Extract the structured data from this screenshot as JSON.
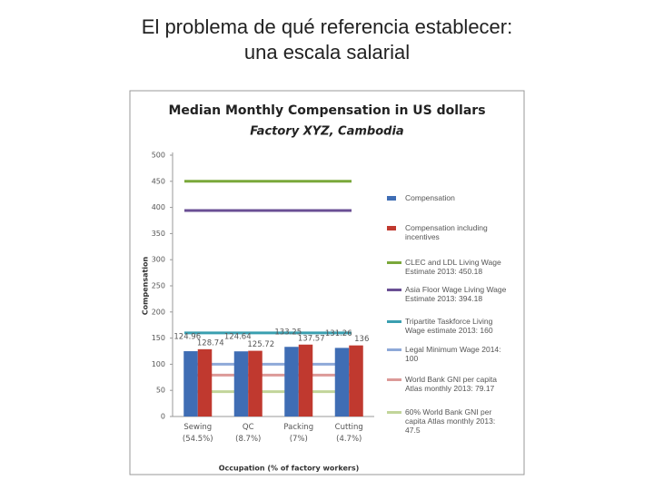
{
  "slide_title_line1": "El problema de qué referencia establecer:",
  "slide_title_line2": "una escala salarial",
  "chart_data": {
    "type": "bar",
    "title": "Median Monthly Compensation in US dollars",
    "subtitle": "Factory XYZ, Cambodia",
    "y_label": "Compensation",
    "x_label": "Occupation (% of factory workers)",
    "categories": [
      "Sewing (54.5%)",
      "QC (8.7%)",
      "Packing (7%)",
      "Cutting (4.7%)"
    ],
    "ylim": [
      0,
      500
    ],
    "yticks": [
      0,
      50,
      100,
      150,
      200,
      250,
      300,
      350,
      400,
      450,
      500
    ],
    "series": [
      {
        "name": "Compensation",
        "type": "bar",
        "color": "#3f6db4",
        "values": [
          124.96,
          124.64,
          133.25,
          131.26
        ]
      },
      {
        "name": "Compensation including incentives",
        "type": "bar",
        "color": "#c0392f",
        "values": [
          128.74,
          125.72,
          137.57,
          136
        ]
      },
      {
        "name": "CLEC and LDL Living Wage Estimate 2013: 450.18",
        "type": "line",
        "color": "#7aa83a",
        "values": [
          450.18,
          450.18,
          450.18,
          450.18
        ]
      },
      {
        "name": "Asia Floor Wage Living Wage Estimate 2013: 394.18",
        "type": "line",
        "color": "#6a4f94",
        "values": [
          394.18,
          394.18,
          394.18,
          394.18
        ]
      },
      {
        "name": "Tripartite Taskforce Living Wage estimate 2013: 160",
        "type": "line",
        "color": "#3a9fb0",
        "values": [
          160,
          160,
          160,
          160
        ]
      },
      {
        "name": "Legal Minimum Wage 2014: 100",
        "type": "line",
        "color": "#8ea9d8",
        "values": [
          100,
          100,
          100,
          100
        ]
      },
      {
        "name": "World Bank GNI per capita Atlas monthly 2013: 79.17",
        "type": "line",
        "color": "#dc9a98",
        "values": [
          79.17,
          79.17,
          79.17,
          79.17
        ]
      },
      {
        "name": "60% World Bank GNI per capita Atlas monthly 2013: 47.5",
        "type": "line",
        "color": "#c2d59a",
        "values": [
          47.5,
          47.5,
          47.5,
          47.5
        ]
      }
    ]
  }
}
